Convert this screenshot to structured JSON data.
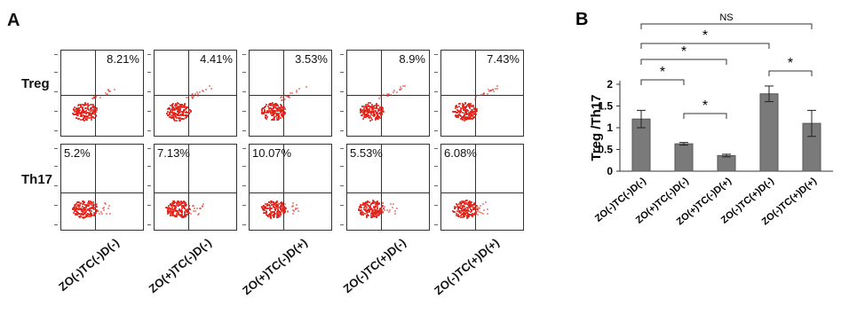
{
  "panel_a": {
    "letter": "A",
    "rows": [
      {
        "label": "Treg",
        "percents": [
          "8.21%",
          "4.41%",
          "3.53%",
          "8.9%",
          "7.43%"
        ]
      },
      {
        "label": "Th17",
        "percents": [
          "5.2%",
          "7.13%",
          "10.07%",
          "5.53%",
          "6.08%"
        ]
      }
    ],
    "categories": [
      "ZO(-)TC(-)D(-)",
      "ZO(+)TC(-)D(-)",
      "ZO(+)TC(-)D(+)",
      "ZO(-)TC(+)D(-)",
      "ZO(-)TC(+)D(+)"
    ]
  },
  "chart_data": {
    "type": "bar",
    "panel_letter": "B",
    "ylabel": "Treg /Th17",
    "ylim": [
      0,
      2
    ],
    "yticks": [
      "0",
      "0.5",
      "1",
      "1.5",
      "2"
    ],
    "categories": [
      "ZO(-)TC(-)D(-)",
      "ZO(+)TC(-)D(-)",
      "ZO(+)TC(-)D(+)",
      "ZO(-)TC(+)D(-)",
      "ZO(-)TC(+)D(+)"
    ],
    "values": [
      1.2,
      0.63,
      0.36,
      1.78,
      1.1
    ],
    "errors": [
      0.2,
      0.03,
      0.03,
      0.18,
      0.3
    ],
    "bar_color": "#7a7a7a",
    "significance": [
      {
        "from": 0,
        "to": 1,
        "label": "*"
      },
      {
        "from": 1,
        "to": 2,
        "label": "*"
      },
      {
        "from": 0,
        "to": 2,
        "label": "*"
      },
      {
        "from": 0,
        "to": 3,
        "label": "*"
      },
      {
        "from": 0,
        "to": 4,
        "label": "NS"
      },
      {
        "from": 3,
        "to": 4,
        "label": "*"
      }
    ]
  }
}
